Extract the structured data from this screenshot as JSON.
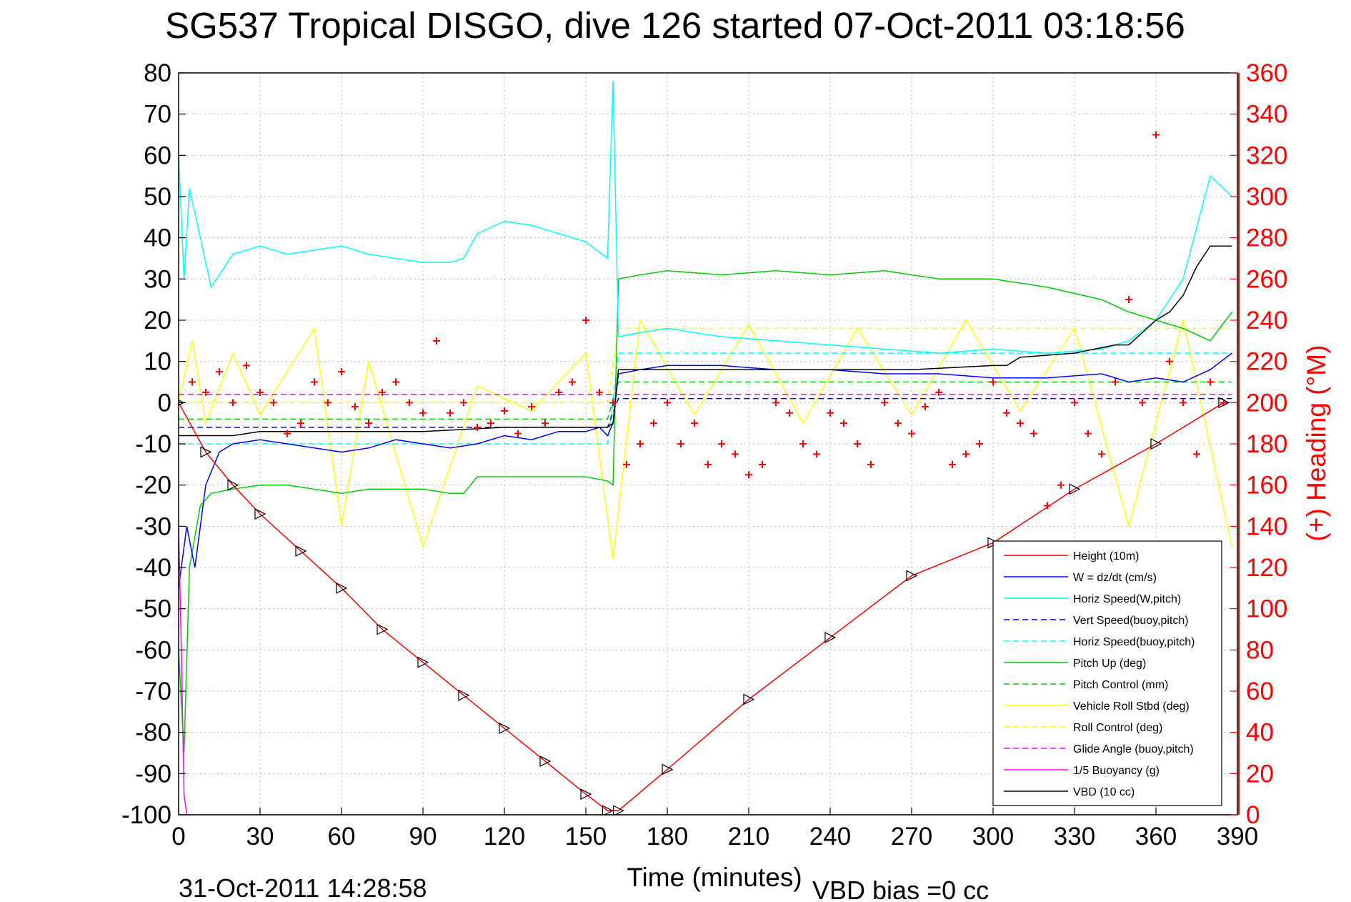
{
  "chart_data": {
    "type": "line",
    "title": "SG537 Tropical DISGO, dive 126 started 07-Oct-2011 03:18:56",
    "xlabel": "Time (minutes)",
    "ylabel": "",
    "ylabel_right": "(+) Heading (°M)",
    "xlim": [
      0,
      390
    ],
    "ylim": [
      -100,
      80
    ],
    "ylim_right": [
      0,
      360
    ],
    "x_ticks": [
      "0",
      "30",
      "60",
      "90",
      "120",
      "150",
      "180",
      "210",
      "240",
      "270",
      "300",
      "330",
      "360",
      "390"
    ],
    "y_ticks": [
      "80",
      "70",
      "60",
      "50",
      "40",
      "30",
      "20",
      "10",
      "0",
      "-10",
      "-20",
      "-30",
      "-40",
      "-50",
      "-60",
      "-70",
      "-80",
      "-90",
      "-100"
    ],
    "y_ticks_right": [
      "360",
      "340",
      "320",
      "300",
      "280",
      "260",
      "240",
      "220",
      "200",
      "180",
      "160",
      "140",
      "120",
      "100",
      "80",
      "60",
      "40",
      "20",
      "0"
    ],
    "grid": true,
    "legend_position": "bottom-right",
    "footer_date": "31-Oct-2011 14:28:58",
    "footer_note": "VBD bias =0 cc",
    "series": [
      {
        "name": "Height (10m)",
        "color": "#ff0000",
        "style": "solid",
        "x": [
          0,
          10,
          20,
          30,
          45,
          60,
          75,
          90,
          105,
          120,
          135,
          150,
          158,
          162,
          180,
          210,
          240,
          270,
          300,
          330,
          360,
          385
        ],
        "y": [
          0,
          -12,
          -20,
          -27,
          -36,
          -45,
          -55,
          -63,
          -71,
          -79,
          -87,
          -95,
          -99,
          -99,
          -89,
          -72,
          -57,
          -42,
          -34,
          -21,
          -10,
          0
        ]
      },
      {
        "name": "W = dz/dt (cm/s)",
        "color": "#0000ff",
        "style": "solid",
        "x": [
          0,
          3,
          6,
          10,
          15,
          20,
          30,
          40,
          50,
          60,
          70,
          80,
          90,
          100,
          110,
          120,
          130,
          140,
          150,
          155,
          158,
          160,
          162,
          170,
          180,
          200,
          220,
          240,
          260,
          280,
          300,
          320,
          340,
          350,
          360,
          370,
          380,
          388
        ],
        "y": [
          -45,
          -30,
          -40,
          -20,
          -12,
          -10,
          -9,
          -10,
          -11,
          -12,
          -11,
          -9,
          -10,
          -11,
          -10,
          -8,
          -9,
          -7,
          -7,
          -6,
          -8,
          -5,
          7,
          8,
          9,
          9,
          8,
          8,
          7,
          7,
          6,
          6,
          7,
          5,
          6,
          5,
          8,
          12
        ]
      },
      {
        "name": "Horiz Speed(W,pitch)",
        "color": "#00ffff",
        "style": "solid",
        "x": [
          0,
          2,
          4,
          8,
          12,
          20,
          30,
          40,
          50,
          60,
          70,
          80,
          90,
          100,
          105,
          110,
          120,
          130,
          140,
          150,
          158,
          160,
          162,
          170,
          180,
          200,
          220,
          240,
          260,
          280,
          300,
          320,
          340,
          350,
          360,
          370,
          380,
          388
        ],
        "y": [
          60,
          30,
          52,
          40,
          28,
          36,
          38,
          36,
          37,
          38,
          36,
          35,
          34,
          34,
          35,
          41,
          44,
          43,
          41,
          39,
          35,
          78,
          16,
          17,
          18,
          16,
          15,
          14,
          13,
          12,
          13,
          12,
          13,
          15,
          20,
          30,
          55,
          50
        ]
      },
      {
        "name": "Vert Speed(buoy,pitch)",
        "color": "#0000ff",
        "style": "dashed",
        "x": [
          0,
          158,
          162,
          388
        ],
        "y": [
          -6,
          -6,
          1,
          1
        ]
      },
      {
        "name": "Horiz Speed(buoy,pitch)",
        "color": "#00ffff",
        "style": "dashed",
        "x": [
          0,
          158,
          162,
          388
        ],
        "y": [
          -10,
          -10,
          12,
          12
        ]
      },
      {
        "name": "Pitch Up (deg)",
        "color": "#00cc00",
        "style": "solid",
        "x": [
          0,
          2,
          4,
          8,
          12,
          20,
          30,
          40,
          50,
          60,
          70,
          80,
          90,
          100,
          105,
          110,
          120,
          130,
          140,
          150,
          158,
          160,
          162,
          170,
          180,
          200,
          220,
          240,
          260,
          280,
          300,
          320,
          340,
          350,
          360,
          370,
          380,
          388
        ],
        "y": [
          -60,
          -85,
          -40,
          -25,
          -22,
          -21,
          -20,
          -20,
          -21,
          -22,
          -21,
          -21,
          -21,
          -22,
          -22,
          -18,
          -18,
          -18,
          -18,
          -18,
          -19,
          -20,
          30,
          31,
          32,
          31,
          32,
          31,
          32,
          30,
          30,
          28,
          25,
          22,
          20,
          18,
          15,
          22
        ]
      },
      {
        "name": "Pitch Control (mm)",
        "color": "#00cc00",
        "style": "dashed",
        "x": [
          0,
          158,
          162,
          388
        ],
        "y": [
          -4,
          -4,
          5,
          5
        ]
      },
      {
        "name": "Vehicle Roll Stbd (deg)",
        "color": "#ffff00",
        "style": "solid",
        "x": [
          0,
          5,
          10,
          20,
          30,
          50,
          60,
          70,
          90,
          110,
          130,
          150,
          160,
          170,
          190,
          210,
          230,
          250,
          270,
          290,
          310,
          330,
          350,
          370,
          388
        ],
        "y": [
          0,
          15,
          -5,
          12,
          -3,
          18,
          -30,
          10,
          -35,
          4,
          -2,
          12,
          -38,
          20,
          -3,
          19,
          -5,
          18,
          -3,
          20,
          -2,
          18,
          -30,
          20,
          -35
        ]
      },
      {
        "name": "Roll Control (deg)",
        "color": "#ffff00",
        "style": "dashed",
        "x": [
          0,
          158,
          162,
          388
        ],
        "y": [
          0,
          0,
          18,
          18
        ]
      },
      {
        "name": "Glide Angle (buoy,pitch)",
        "color": "#ff00ff",
        "style": "dashed",
        "x": [
          0,
          388
        ],
        "y": [
          2,
          2
        ]
      },
      {
        "name": "1/5 Buoyancy (g)",
        "color": "#ff00ff",
        "style": "solid",
        "x": [
          0,
          1,
          2,
          3,
          4,
          388
        ],
        "y": [
          -30,
          -60,
          -95,
          -100,
          -100,
          -100
        ]
      },
      {
        "name": "VBD (10 cc)",
        "color": "#000000",
        "style": "solid",
        "x": [
          0,
          5,
          10,
          20,
          30,
          60,
          90,
          120,
          150,
          158,
          160,
          162,
          180,
          210,
          240,
          270,
          300,
          305,
          310,
          330,
          345,
          350,
          355,
          360,
          365,
          370,
          375,
          380,
          388
        ],
        "y": [
          -8,
          -8,
          -8,
          -8,
          -7,
          -7,
          -7,
          -6,
          -6,
          -6,
          -5,
          8,
          8,
          8,
          8,
          8,
          9,
          9,
          11,
          12,
          14,
          14,
          17,
          20,
          22,
          26,
          33,
          38,
          38
        ]
      },
      {
        "name": "Heading (+)",
        "color": "#ff0000",
        "style": "markers",
        "x": [
          5,
          10,
          15,
          20,
          25,
          30,
          35,
          40,
          45,
          50,
          55,
          60,
          65,
          70,
          75,
          80,
          85,
          90,
          95,
          100,
          105,
          110,
          115,
          120,
          125,
          130,
          135,
          140,
          145,
          150,
          155,
          160,
          165,
          170,
          175,
          180,
          185,
          190,
          195,
          200,
          205,
          210,
          215,
          220,
          225,
          230,
          235,
          240,
          245,
          250,
          255,
          260,
          265,
          270,
          275,
          280,
          285,
          290,
          295,
          300,
          305,
          310,
          315,
          320,
          325,
          330,
          335,
          340,
          345,
          350,
          355,
          360,
          365,
          370,
          375,
          380,
          385
        ],
        "y": [
          210,
          205,
          215,
          200,
          218,
          205,
          200,
          185,
          190,
          210,
          200,
          215,
          198,
          190,
          205,
          210,
          200,
          195,
          230,
          195,
          200,
          188,
          190,
          196,
          185,
          198,
          190,
          205,
          210,
          240,
          205,
          200,
          170,
          180,
          190,
          200,
          180,
          190,
          170,
          180,
          175,
          165,
          170,
          200,
          195,
          180,
          175,
          195,
          190,
          180,
          170,
          200,
          190,
          185,
          198,
          205,
          170,
          175,
          180,
          210,
          195,
          190,
          185,
          150,
          160,
          200,
          185,
          175,
          210,
          250,
          200,
          330,
          220,
          200,
          175,
          210,
          200
        ]
      }
    ]
  }
}
